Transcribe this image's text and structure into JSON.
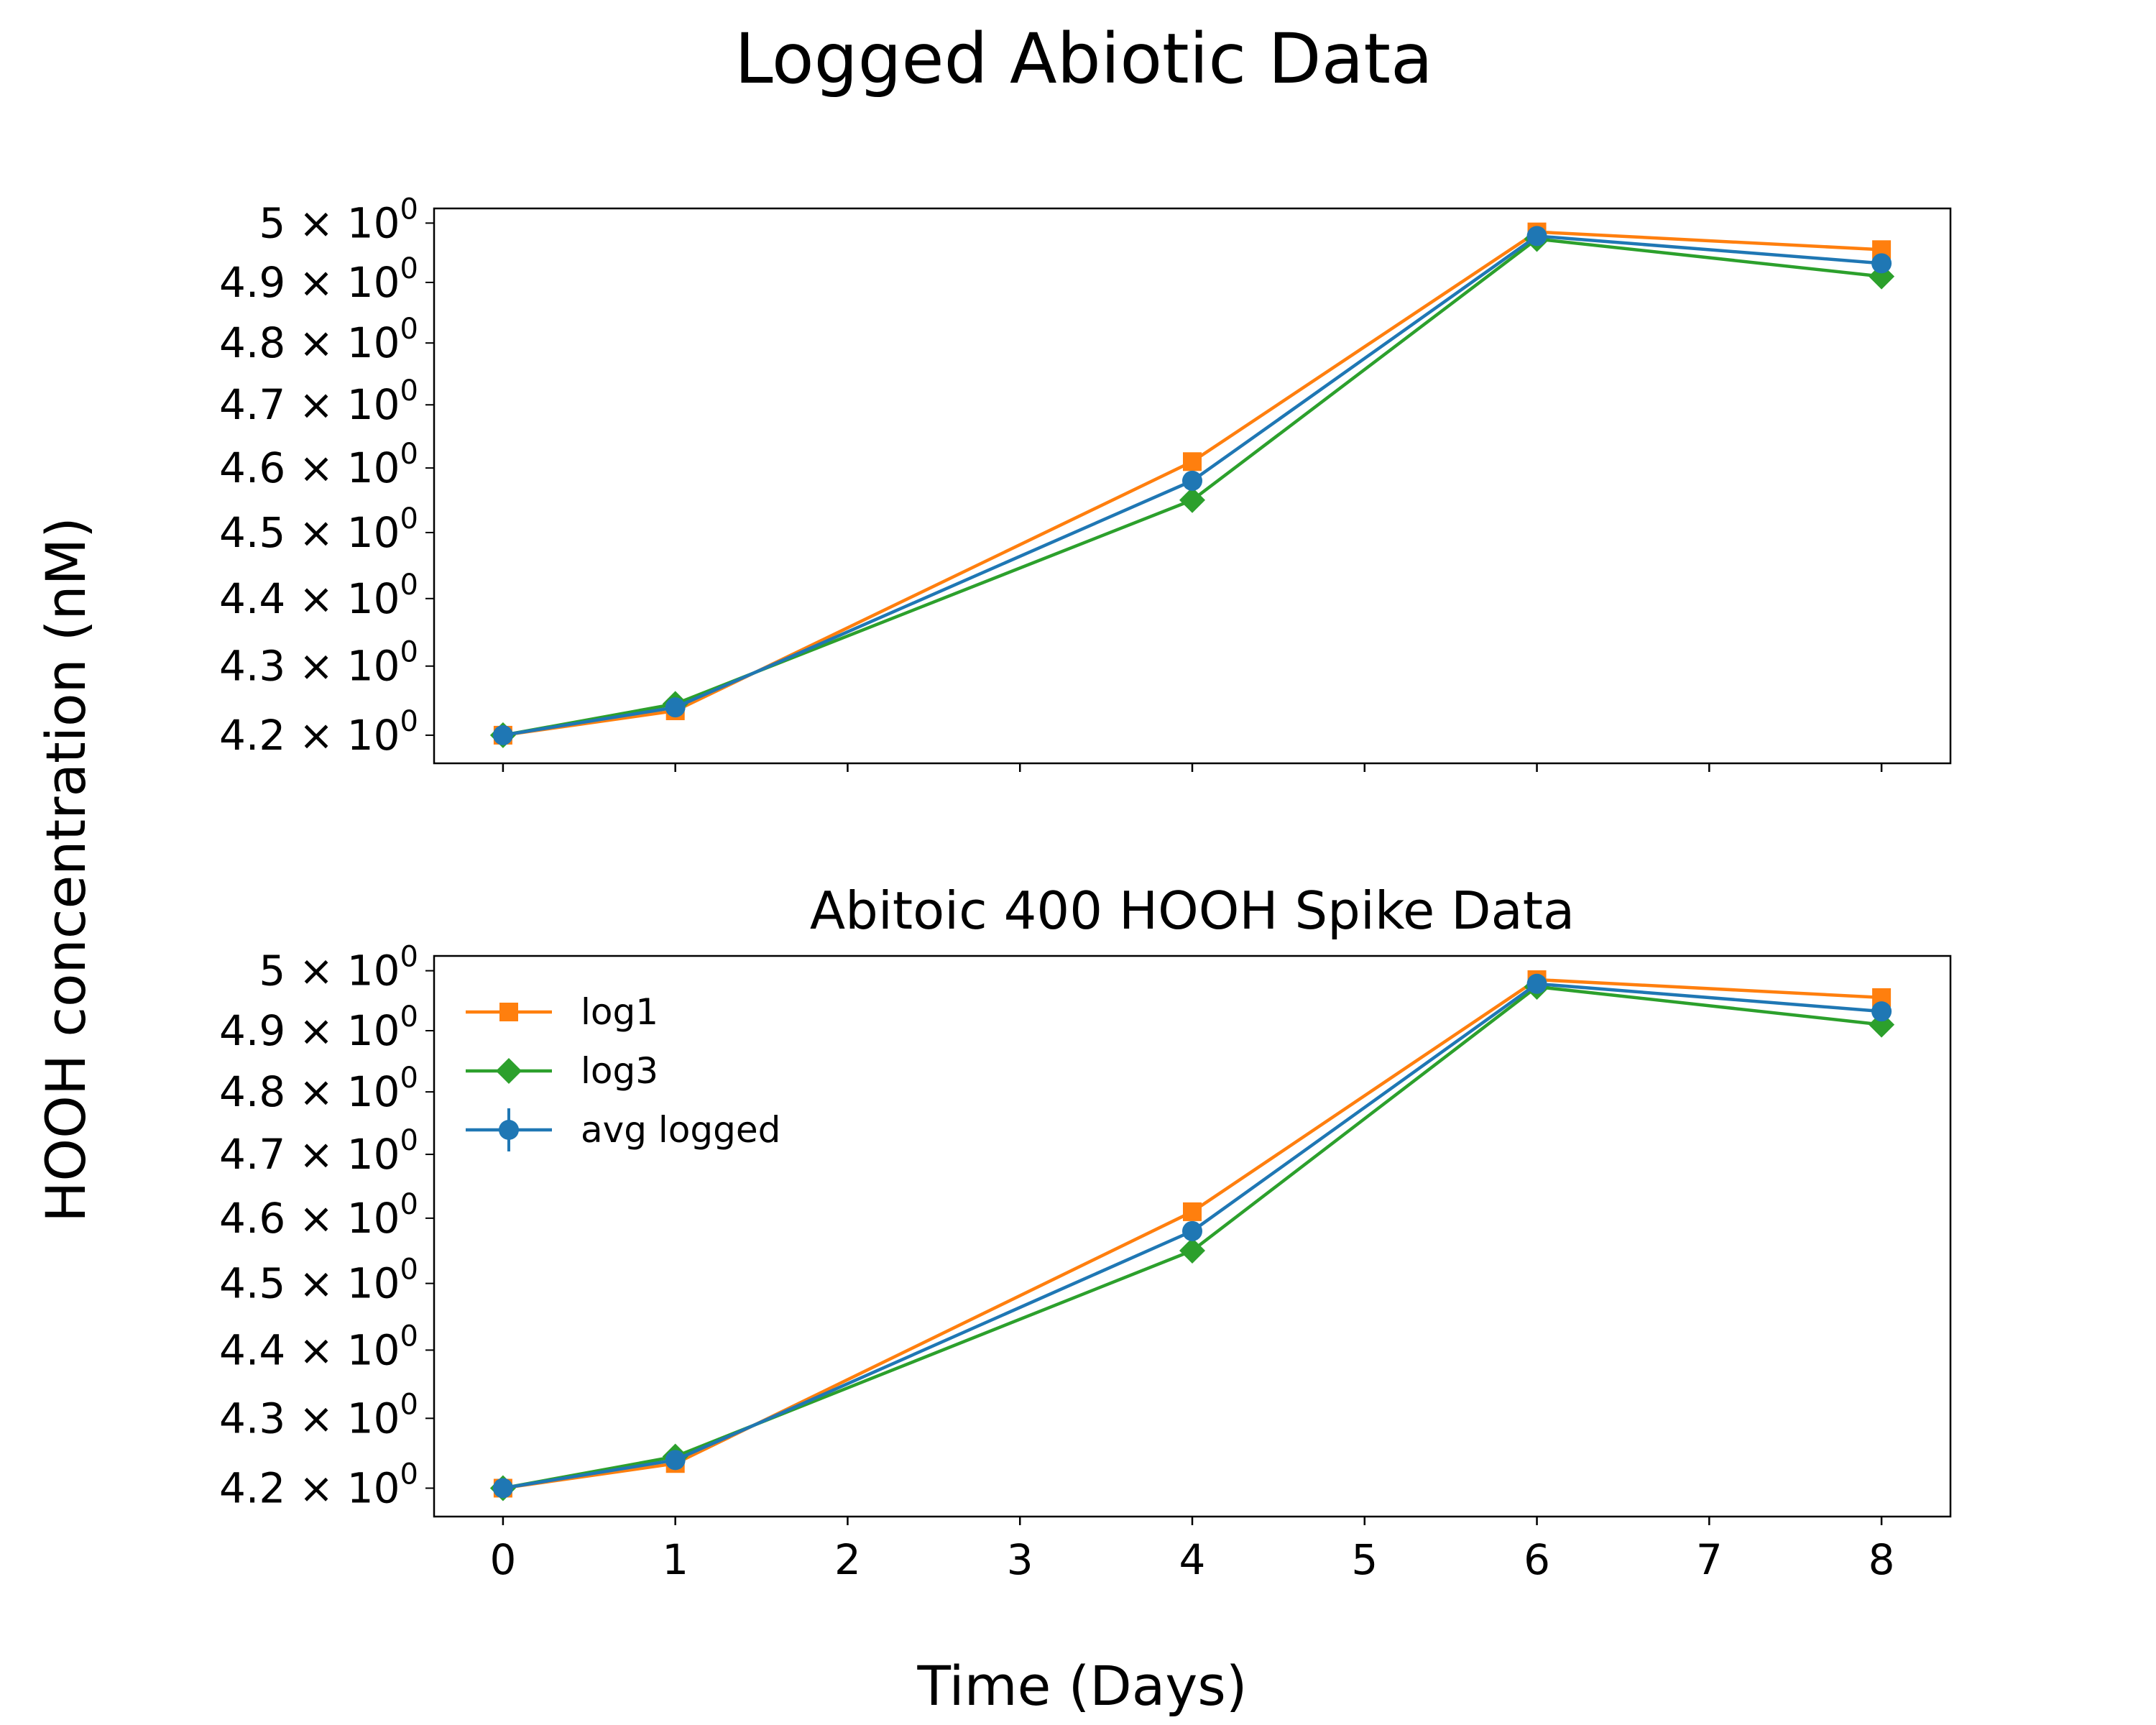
{
  "figure": {
    "suptitle": "Logged Abiotic Data",
    "xlabel": "Time (Days)",
    "ylabel": "HOOH concentration (nM)"
  },
  "colors": {
    "log1": "#ff7f0e",
    "log3": "#2ca02c",
    "avg": "#1f77b4",
    "axis": "#000000",
    "background": "#ffffff"
  },
  "chart_data": [
    {
      "type": "line",
      "title": "",
      "xlabel": "",
      "ylabel": "",
      "yscale": "log",
      "xlim": [
        -0.4,
        8.4
      ],
      "ylim": [
        4.16,
        5.025
      ],
      "x_ticks": [
        0,
        1,
        2,
        3,
        4,
        5,
        6,
        7,
        8
      ],
      "x_tick_labels_visible": false,
      "y_ticks": [
        4.2,
        4.3,
        4.4,
        4.5,
        4.6,
        4.7,
        4.8,
        4.9,
        5.0
      ],
      "y_tick_labels": [
        {
          "mantissa": "4.2",
          "times": "×",
          "base": "10",
          "exp": "0"
        },
        {
          "mantissa": "4.3",
          "times": "×",
          "base": "10",
          "exp": "0"
        },
        {
          "mantissa": "4.4",
          "times": "×",
          "base": "10",
          "exp": "0"
        },
        {
          "mantissa": "4.5",
          "times": "×",
          "base": "10",
          "exp": "0"
        },
        {
          "mantissa": "4.6",
          "times": "×",
          "base": "10",
          "exp": "0"
        },
        {
          "mantissa": "4.7",
          "times": "×",
          "base": "10",
          "exp": "0"
        },
        {
          "mantissa": "4.8",
          "times": "×",
          "base": "10",
          "exp": "0"
        },
        {
          "mantissa": "4.9",
          "times": "×",
          "base": "10",
          "exp": "0"
        },
        {
          "mantissa": "5",
          "times": "×",
          "base": "10",
          "exp": "0"
        }
      ],
      "grid": false,
      "legend": null,
      "series": [
        {
          "key": "log1",
          "marker": "square",
          "x": [
            0,
            1,
            4,
            6,
            8
          ],
          "y": [
            4.2,
            4.235,
            4.61,
            4.985,
            4.955
          ]
        },
        {
          "key": "log3",
          "marker": "diamond",
          "x": [
            0,
            1,
            4,
            6,
            8
          ],
          "y": [
            4.2,
            4.245,
            4.55,
            4.973,
            4.91
          ]
        },
        {
          "key": "avg",
          "marker": "circle",
          "x": [
            0,
            1,
            4,
            6,
            8
          ],
          "y": [
            4.2,
            4.24,
            4.58,
            4.978,
            4.932
          ]
        }
      ]
    },
    {
      "type": "line",
      "title": "Abitoic 400 HOOH Spike Data",
      "xlabel": "",
      "ylabel": "",
      "yscale": "log",
      "xlim": [
        -0.4,
        8.4
      ],
      "ylim": [
        4.16,
        5.025
      ],
      "x_ticks": [
        0,
        1,
        2,
        3,
        4,
        5,
        6,
        7,
        8
      ],
      "x_tick_labels": [
        "0",
        "1",
        "2",
        "3",
        "4",
        "5",
        "6",
        "7",
        "8"
      ],
      "x_tick_labels_visible": true,
      "y_ticks": [
        4.2,
        4.3,
        4.4,
        4.5,
        4.6,
        4.7,
        4.8,
        4.9,
        5.0
      ],
      "y_tick_labels": [
        {
          "mantissa": "4.2",
          "times": "×",
          "base": "10",
          "exp": "0"
        },
        {
          "mantissa": "4.3",
          "times": "×",
          "base": "10",
          "exp": "0"
        },
        {
          "mantissa": "4.4",
          "times": "×",
          "base": "10",
          "exp": "0"
        },
        {
          "mantissa": "4.5",
          "times": "×",
          "base": "10",
          "exp": "0"
        },
        {
          "mantissa": "4.6",
          "times": "×",
          "base": "10",
          "exp": "0"
        },
        {
          "mantissa": "4.7",
          "times": "×",
          "base": "10",
          "exp": "0"
        },
        {
          "mantissa": "4.8",
          "times": "×",
          "base": "10",
          "exp": "0"
        },
        {
          "mantissa": "4.9",
          "times": "×",
          "base": "10",
          "exp": "0"
        },
        {
          "mantissa": "5",
          "times": "×",
          "base": "10",
          "exp": "0"
        }
      ],
      "grid": false,
      "legend": {
        "position": "upper-left",
        "entries": [
          {
            "key": "log1",
            "label": "log1",
            "marker": "square"
          },
          {
            "key": "log3",
            "label": "log3",
            "marker": "diamond"
          },
          {
            "key": "avg",
            "label": "avg logged",
            "marker": "circle",
            "errorbar": true
          }
        ]
      },
      "series": [
        {
          "key": "log1",
          "name": "log1",
          "marker": "square",
          "x": [
            0,
            1,
            4,
            6,
            8
          ],
          "y": [
            4.2,
            4.235,
            4.61,
            4.985,
            4.955
          ]
        },
        {
          "key": "log3",
          "name": "log3",
          "marker": "diamond",
          "x": [
            0,
            1,
            4,
            6,
            8
          ],
          "y": [
            4.2,
            4.245,
            4.55,
            4.973,
            4.91
          ]
        },
        {
          "key": "avg",
          "name": "avg logged",
          "marker": "circle",
          "x": [
            0,
            1,
            4,
            6,
            8
          ],
          "y": [
            4.2,
            4.24,
            4.58,
            4.978,
            4.932
          ]
        }
      ]
    }
  ]
}
